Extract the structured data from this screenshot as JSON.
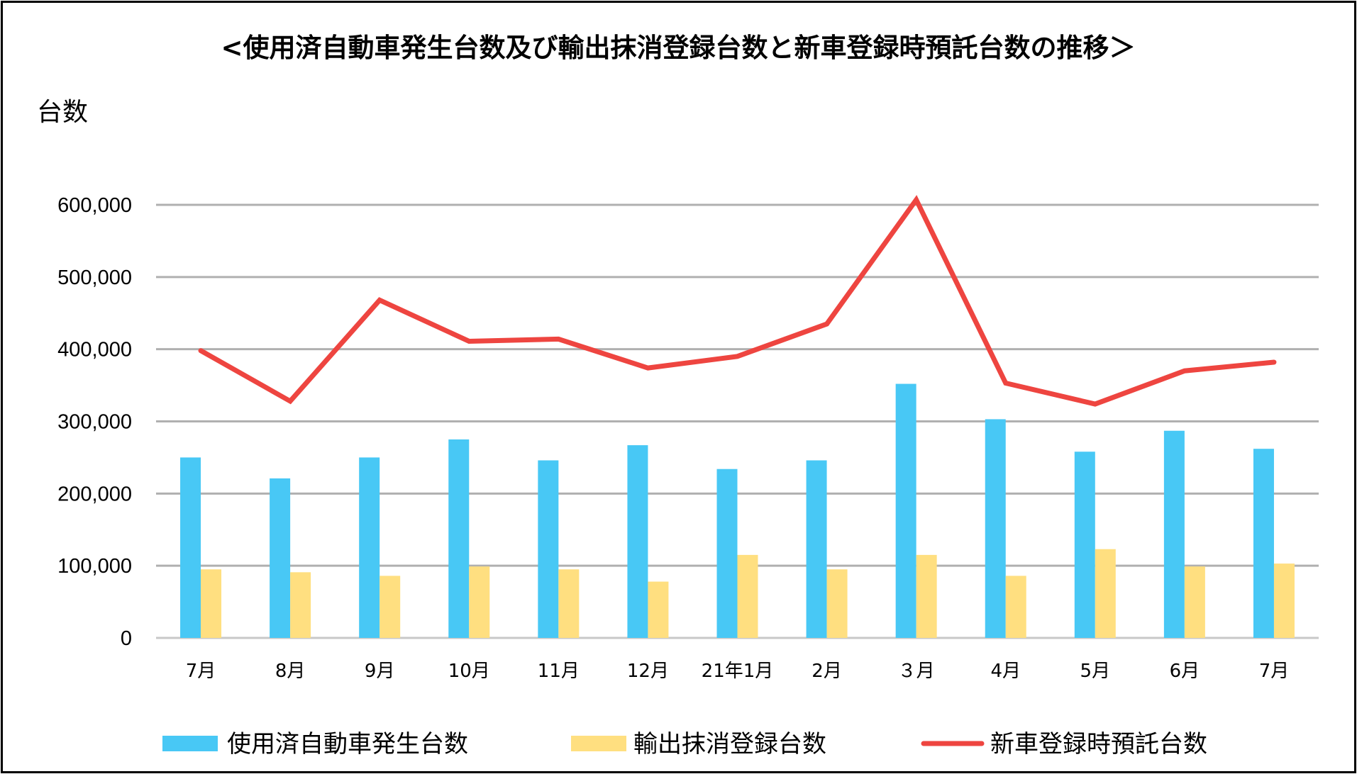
{
  "chart_data": {
    "type": "bar",
    "title": "<使用済自動車発生台数及び輸出抹消登録台数と新車登録時預託台数の推移＞",
    "ylabel": "台数",
    "xlabel": "",
    "ylim": [
      0,
      600000
    ],
    "yticks": [
      0,
      100000,
      200000,
      300000,
      400000,
      500000,
      600000
    ],
    "ytick_labels": [
      "0",
      "100,000",
      "200,000",
      "300,000",
      "400,000",
      "500,000",
      "600,000"
    ],
    "grid": true,
    "legend_position": "bottom",
    "categories": [
      "7月",
      "8月",
      "9月",
      "10月",
      "11月",
      "12月",
      "21年1月",
      "2月",
      "３月",
      "4月",
      "5月",
      "6月",
      "7月"
    ],
    "series": [
      {
        "name": "使用済自動車発生台数",
        "type": "bar",
        "color": "#48c8f5",
        "values": [
          250000,
          221000,
          250000,
          275000,
          246000,
          267000,
          234000,
          246000,
          352000,
          303000,
          258000,
          287000,
          262000
        ]
      },
      {
        "name": "輸出抹消登録台数",
        "type": "bar",
        "color": "#ffdf80",
        "values": [
          95000,
          91000,
          86000,
          99000,
          95000,
          78000,
          115000,
          95000,
          115000,
          86000,
          123000,
          99000,
          103000
        ]
      },
      {
        "name": "新車登録時預託台数",
        "type": "line",
        "color": "#ee4540",
        "values": [
          398000,
          328000,
          468000,
          411000,
          414000,
          374000,
          390000,
          435000,
          607000,
          353000,
          324000,
          370000,
          382000
        ]
      }
    ],
    "gridline_color": "#b0b0b0"
  }
}
